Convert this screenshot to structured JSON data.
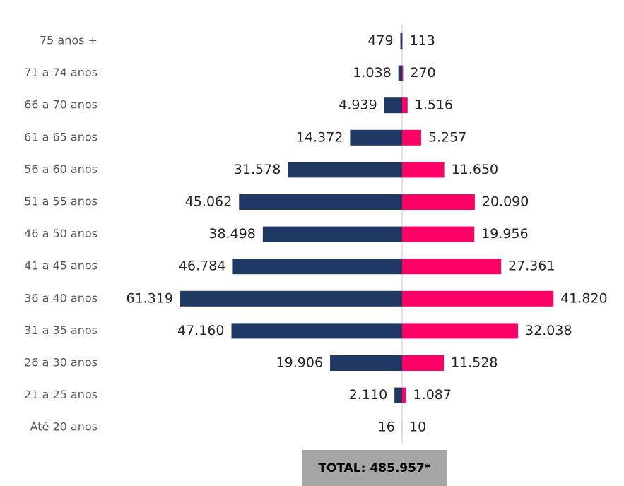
{
  "chart_data": {
    "type": "pyramid",
    "categories": [
      "75 anos +",
      "71 a 74 anos",
      "66 a 70 anos",
      "61 a 65 anos",
      "56 a 60 anos",
      "51 a 55 anos",
      "46 a 50 anos",
      "41 a 45 anos",
      "36 a 40 anos",
      "31 a 35 anos",
      "26 a 30 anos",
      "21 a 25 anos",
      "Até 20 anos"
    ],
    "series": [
      {
        "color": "#1f3864",
        "values": [
          479,
          1038,
          4939,
          14372,
          31578,
          45062,
          38498,
          46784,
          61319,
          47160,
          19906,
          2110,
          16
        ],
        "value_labels": [
          "479",
          "1.038",
          "4.939",
          "14.372",
          "31.578",
          "45.062",
          "38.498",
          "46.784",
          "61.319",
          "47.160",
          "19.906",
          "2.110",
          "16"
        ]
      },
      {
        "color": "#ff0066",
        "values": [
          113,
          270,
          1516,
          5257,
          11650,
          20090,
          19956,
          27361,
          41820,
          32038,
          11528,
          1087,
          10
        ],
        "value_labels": [
          "113",
          "270",
          "1.516",
          "5.257",
          "11.650",
          "20.090",
          "19.956",
          "27.361",
          "41.820",
          "32.038",
          "11.528",
          "1.087",
          "10"
        ]
      }
    ],
    "total": "TOTAL: 485.957*"
  }
}
